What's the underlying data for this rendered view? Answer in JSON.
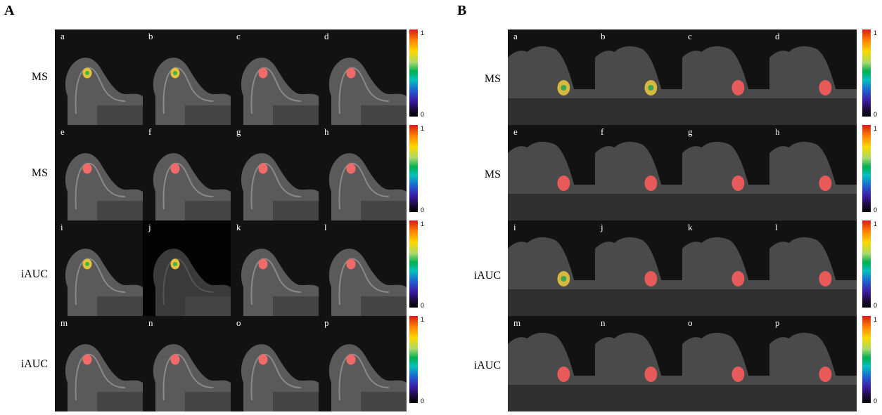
{
  "panels": {
    "A": {
      "label": "A",
      "rows": [
        "MS",
        "MS",
        "iAUC",
        "iAUC"
      ],
      "tile_letters": [
        "a",
        "b",
        "c",
        "d",
        "e",
        "f",
        "g",
        "h",
        "i",
        "j",
        "k",
        "l",
        "m",
        "n",
        "o",
        "p"
      ],
      "colorbar": {
        "top": "1",
        "bottom": "0"
      }
    },
    "B": {
      "label": "B",
      "rows": [
        "MS",
        "MS",
        "iAUC",
        "iAUC"
      ],
      "tile_letters": [
        "a",
        "b",
        "c",
        "d",
        "e",
        "f",
        "g",
        "h",
        "i",
        "j",
        "k",
        "l",
        "m",
        "n",
        "o",
        "p"
      ],
      "colorbar": {
        "top": "1",
        "bottom": "0"
      }
    }
  }
}
